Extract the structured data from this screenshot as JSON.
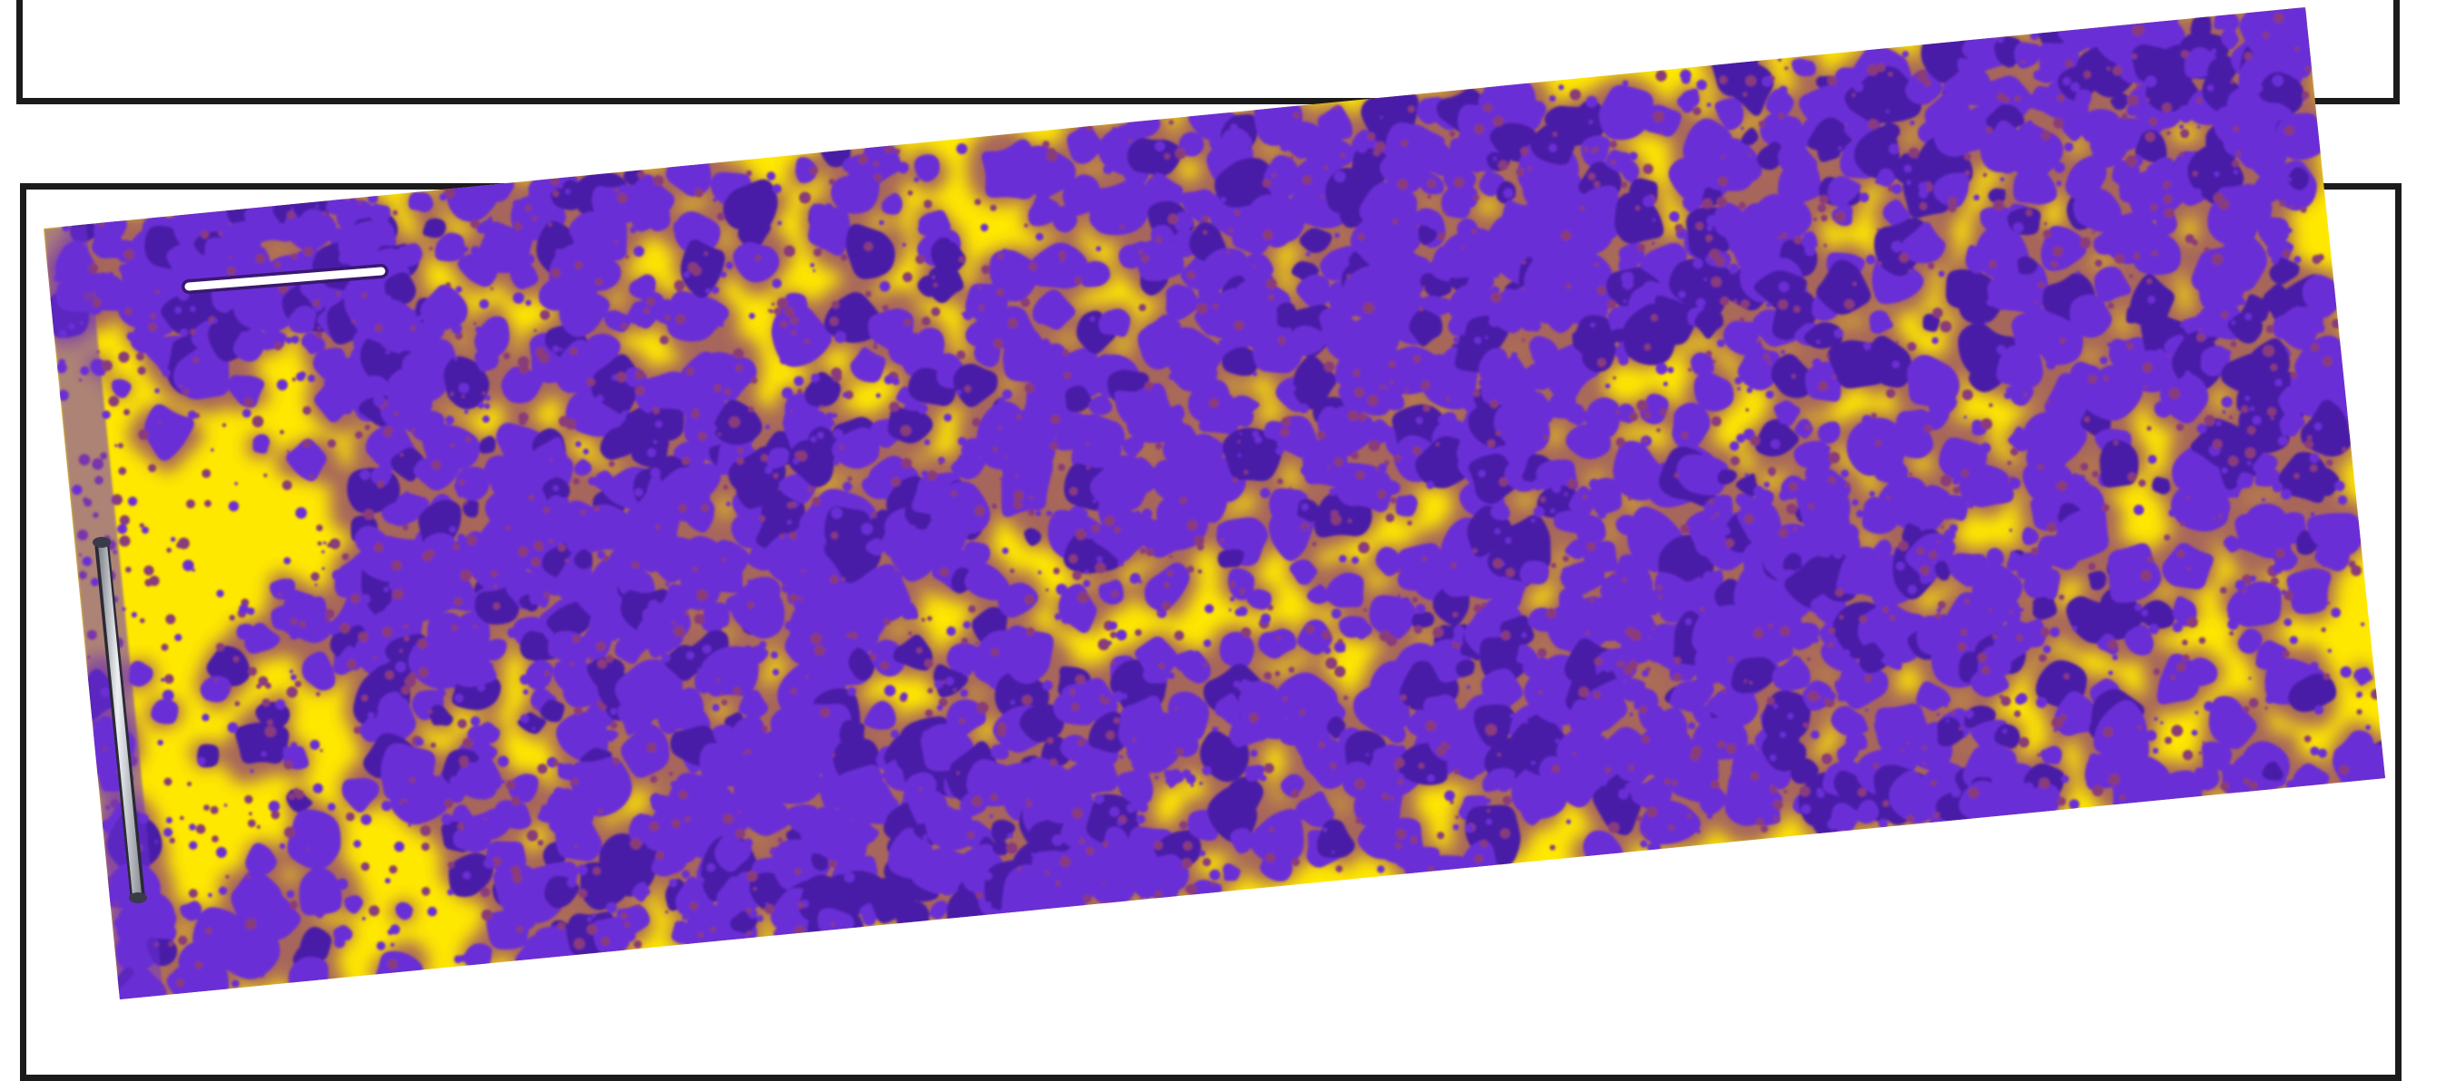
{
  "scene": {
    "description_free": true,
    "background_color": "#ffffff",
    "frame_color": "#1b1b1b",
    "strip": {
      "pattern_name": "spotted-test-strip",
      "base_color": "#ffe800",
      "spot_color": "#6a2fd6",
      "spot_dark_color": "#4a1ea8",
      "halo_color": "#8a3a7a",
      "rotation_deg": -3.4
    },
    "marks": {
      "horizontal_label_color": "#ffffff",
      "metal_clip_color": "#c9ccd2"
    }
  }
}
